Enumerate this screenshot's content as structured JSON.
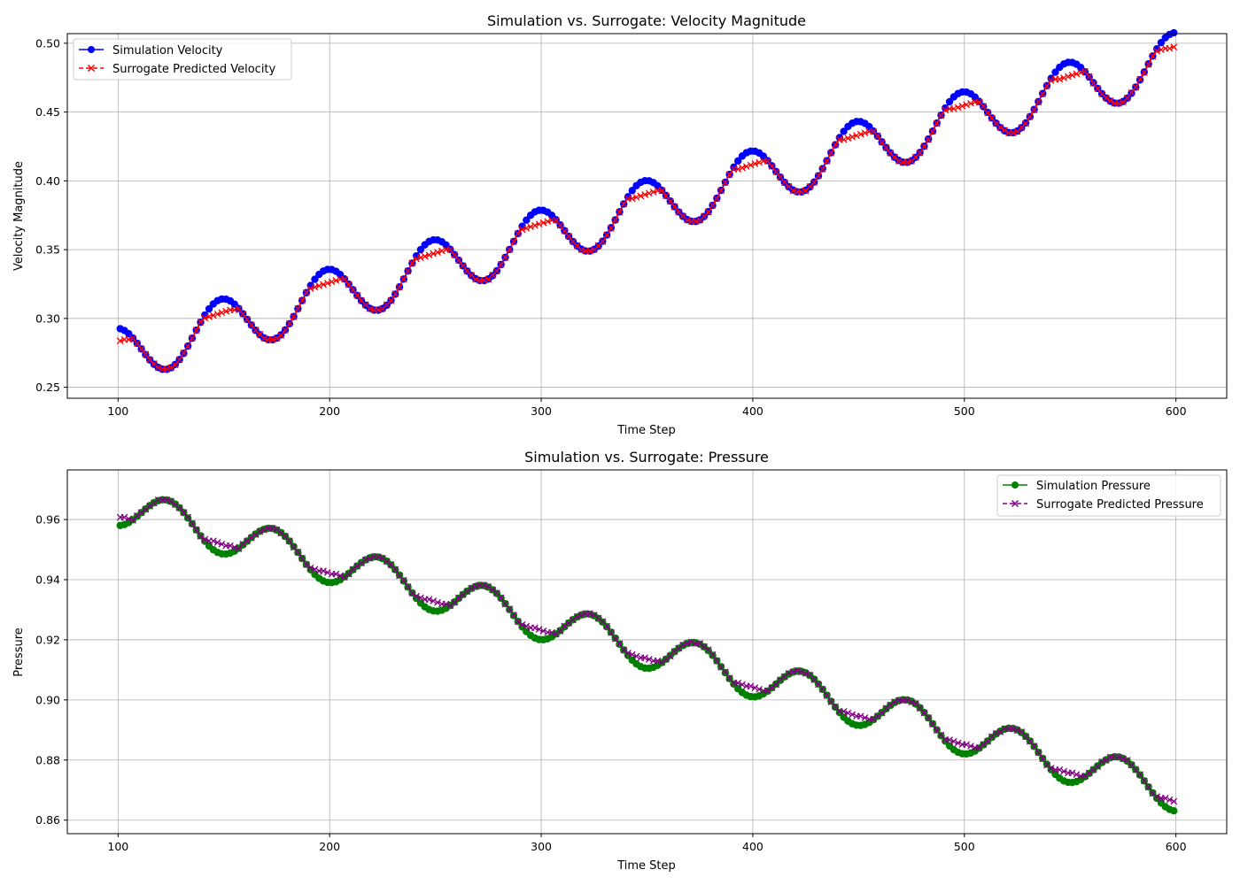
{
  "charts": [
    {
      "type": "line",
      "title": "Simulation vs. Surrogate: Velocity Magnitude",
      "xlabel": "Time Step",
      "ylabel": "Velocity Magnitude",
      "xlim": [
        76,
        624
      ],
      "ylim": [
        0.242,
        0.507
      ],
      "xticks": [
        100,
        200,
        300,
        400,
        500,
        600
      ],
      "xtick_labels": [
        "100",
        "200",
        "300",
        "400",
        "500",
        "600"
      ],
      "yticks": [
        0.25,
        0.3,
        0.35,
        0.4,
        0.45,
        0.5
      ],
      "ytick_labels": [
        "0.25",
        "0.30",
        "0.35",
        "0.40",
        "0.45",
        "0.50"
      ],
      "grid": true,
      "legend_position": "upper-left",
      "x_range": [
        101,
        600
      ],
      "sim_formula": {
        "base": 0.2735,
        "slope": 0.00043,
        "start_x": 101,
        "amplitude": 0.02,
        "period": 50,
        "phase_x": 98.5
      },
      "sur_quantization": 0.0195,
      "sim_dense_segments": [
        [
          200,
          210
        ],
        [
          245,
          260
        ],
        [
          300,
          310
        ],
        [
          405,
          412
        ],
        [
          445,
          460
        ],
        [
          495,
          505
        ],
        [
          545,
          558
        ]
      ],
      "series": [
        {
          "name": "Simulation Velocity",
          "color": "#0000ff",
          "marker": "circle",
          "linestyle": "solid"
        },
        {
          "name": "Surrogate Predicted Velocity",
          "color": "#ff0000",
          "marker": "x",
          "linestyle": "dashed"
        }
      ]
    },
    {
      "type": "line",
      "title": "Simulation vs. Surrogate: Pressure",
      "xlabel": "Time Step",
      "ylabel": "Pressure",
      "xlim": [
        76,
        624
      ],
      "ylim": [
        0.8555,
        0.9765
      ],
      "xticks": [
        100,
        200,
        300,
        400,
        500,
        600
      ],
      "xtick_labels": [
        "100",
        "200",
        "300",
        "400",
        "500",
        "600"
      ],
      "yticks": [
        0.86,
        0.88,
        0.9,
        0.92,
        0.94,
        0.96
      ],
      "ytick_labels": [
        "0.86",
        "0.88",
        "0.90",
        "0.92",
        "0.94",
        "0.96"
      ],
      "grid": true,
      "legend_position": "upper-right",
      "x_range": [
        101,
        600
      ],
      "sim_formula": {
        "base": 0.9642,
        "slope": -0.00019,
        "start_x": 101,
        "amplitude": -0.0065,
        "period": 50,
        "phase_x": 98.5
      },
      "sur_quantization": 0.0105,
      "series": [
        {
          "name": "Simulation Pressure",
          "color": "#008000",
          "marker": "circle",
          "linestyle": "solid"
        },
        {
          "name": "Surrogate Predicted Pressure",
          "color": "#800080",
          "marker": "x",
          "linestyle": "dashed"
        }
      ]
    }
  ]
}
